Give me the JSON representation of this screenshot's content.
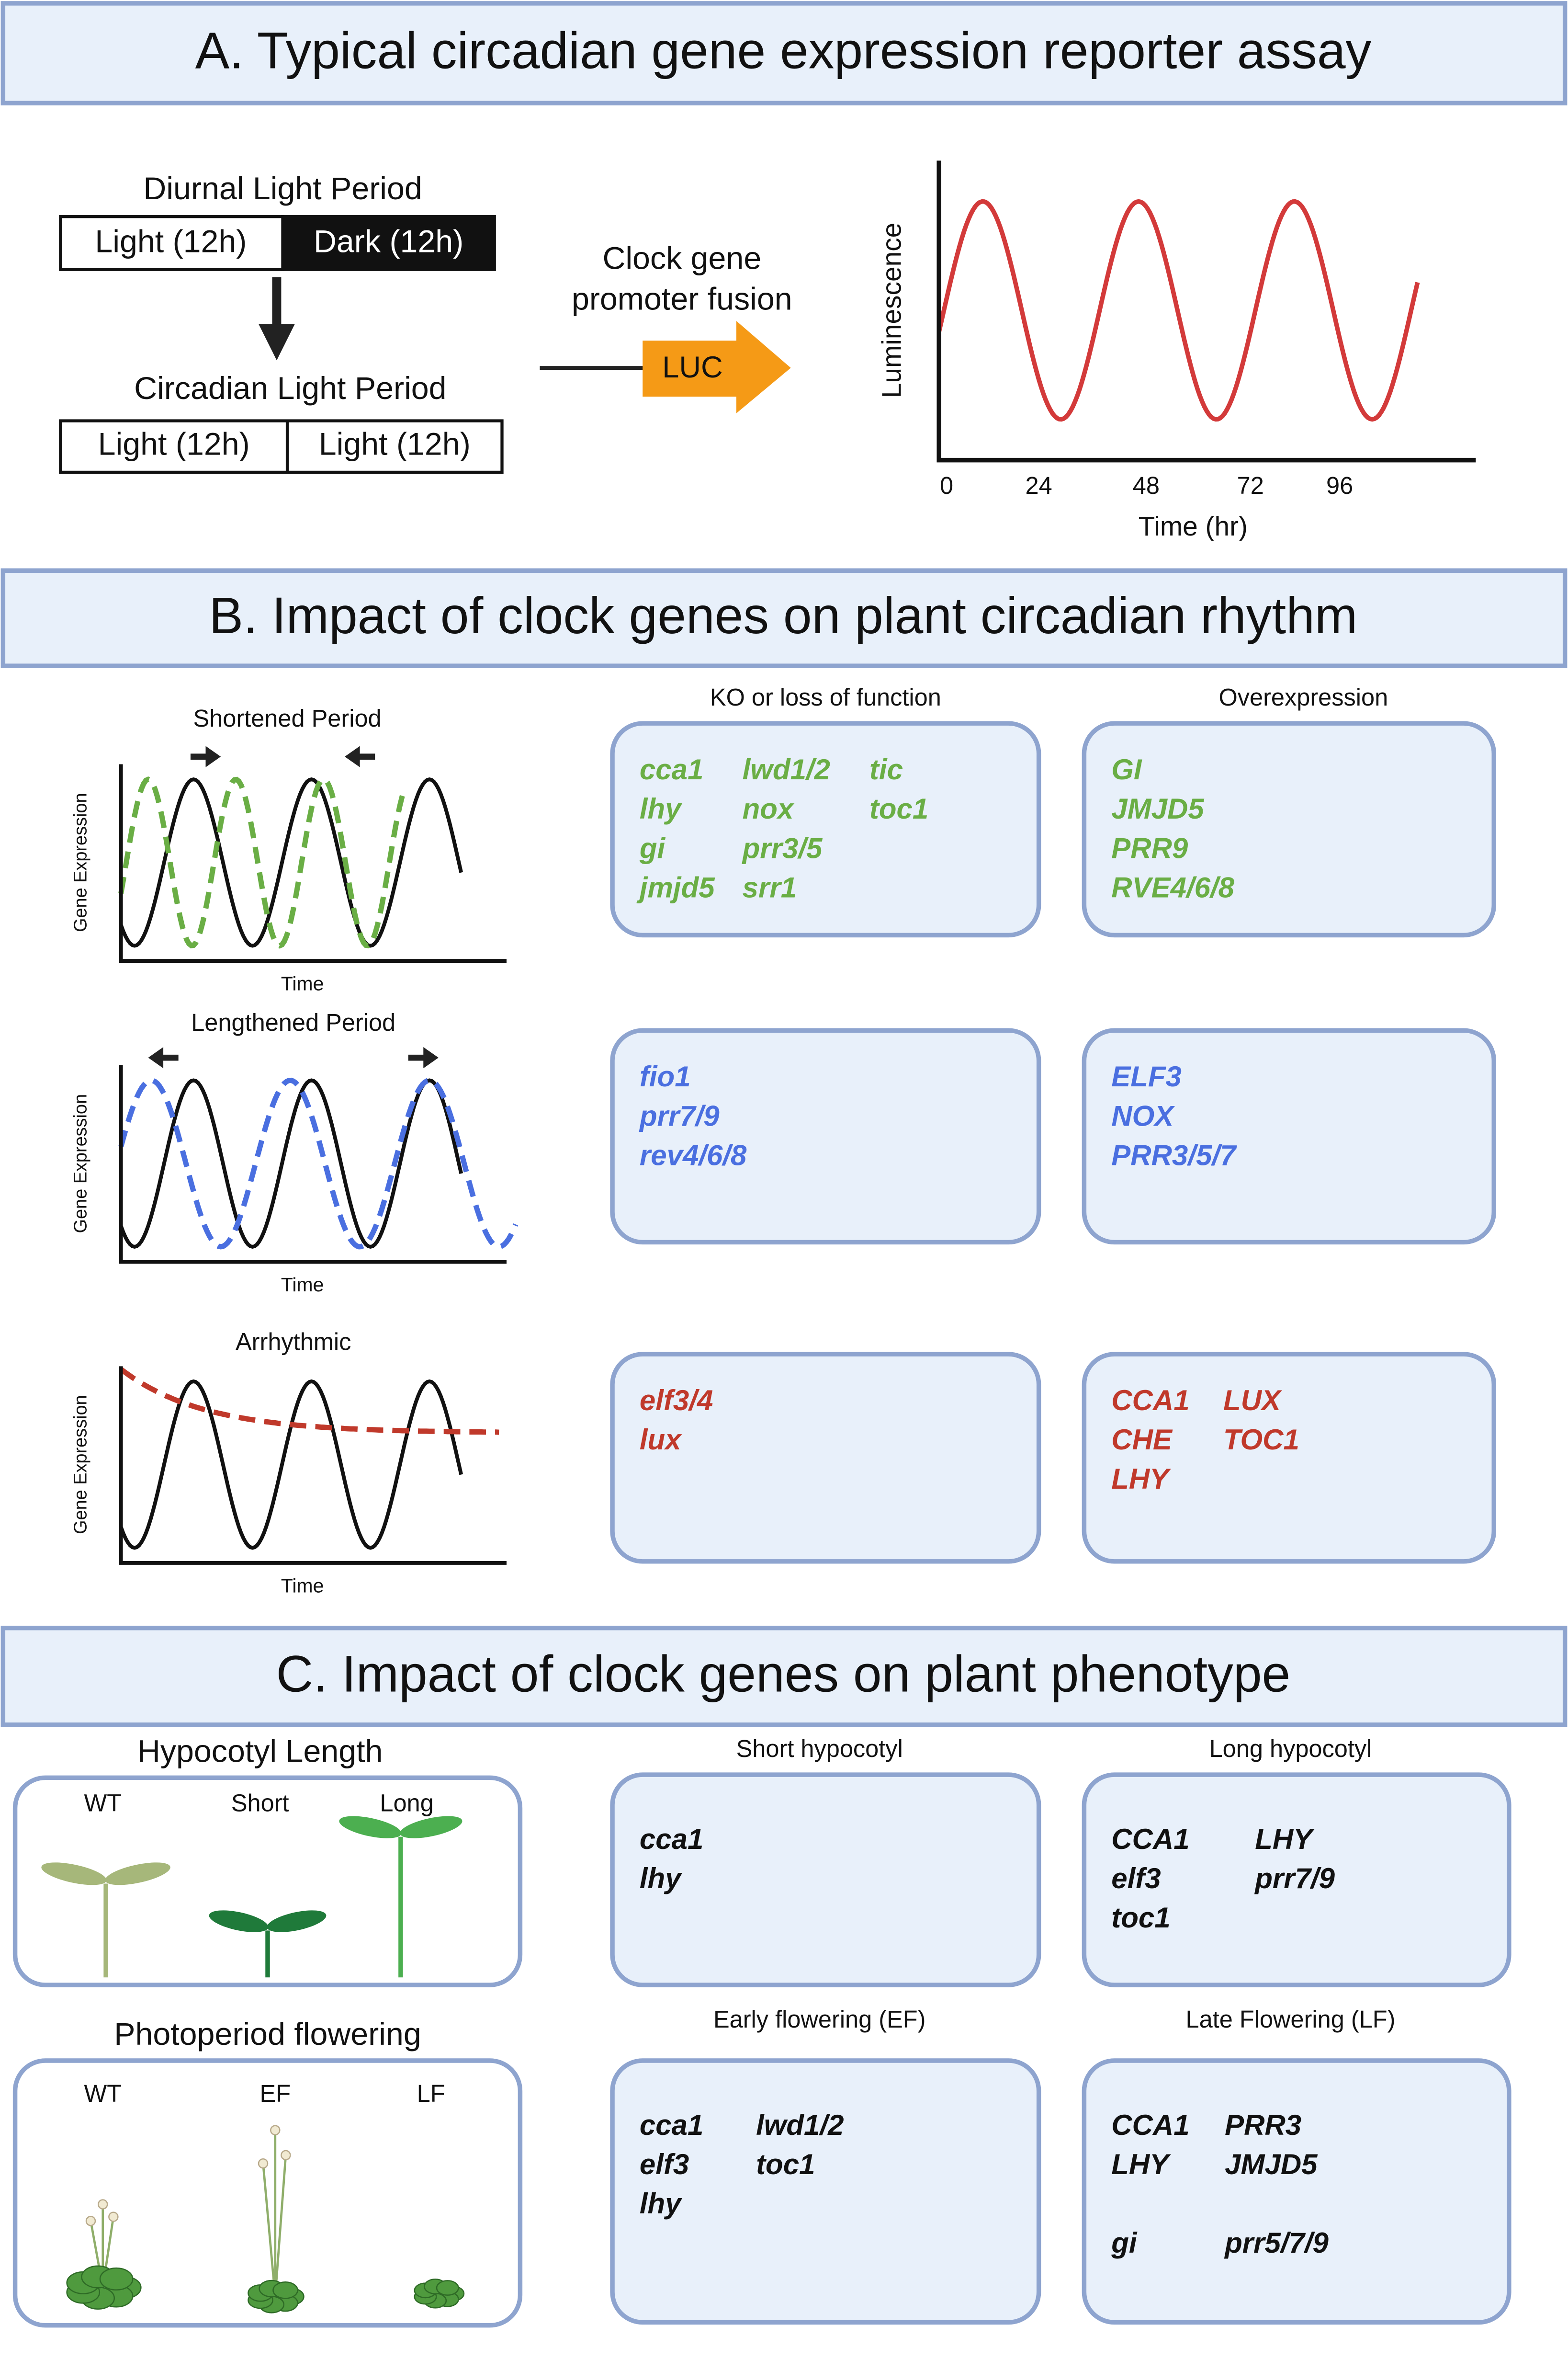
{
  "panel_a": {
    "title": "A. Typical circadian gene expression reporter assay",
    "diurnal": {
      "label": "Diurnal Light Period",
      "left": "Light (12h)",
      "right": "Dark (12h)"
    },
    "circadian": {
      "label": "Circadian Light Period",
      "left": "Light (12h)",
      "right": "Light (12h)"
    },
    "fusion": {
      "label_lines": [
        "Clock gene",
        "promoter fusion"
      ],
      "reporter": "LUC"
    },
    "plot": {
      "y_label": "Luminescence",
      "x_label": "Time (hr)",
      "x_ticks": [
        0,
        24,
        48,
        72,
        96
      ]
    }
  },
  "panel_b": {
    "title": "B. Impact of clock genes on plant circadian rhythm",
    "column_headers": [
      "KO or loss of function",
      "Overexpression"
    ],
    "rows": [
      {
        "plot_title": "Shortened Period",
        "y_label": "Gene Expression",
        "x_label": "Time",
        "color": "#6aae45",
        "ko": [
          [
            "cca1",
            "lwd1/2",
            "tic"
          ],
          [
            "lhy",
            "nox",
            "toc1"
          ],
          [
            "gi",
            "prr3/5"
          ],
          [
            "jmjd5",
            "srr1"
          ]
        ],
        "overexpression": [
          [
            "GI"
          ],
          [
            "JMJD5"
          ],
          [
            "PRR9"
          ],
          [
            "RVE4/6/8"
          ]
        ]
      },
      {
        "plot_title": "Lengthened Period",
        "y_label": "Gene Expression",
        "x_label": "Time",
        "color": "#4a6fe0",
        "ko": [
          [
            "fio1"
          ],
          [
            "prr7/9"
          ],
          [
            "rev4/6/8"
          ]
        ],
        "overexpression": [
          [
            "ELF3"
          ],
          [
            "NOX"
          ],
          [
            "PRR3/5/7"
          ]
        ]
      },
      {
        "plot_title": "Arrhythmic",
        "y_label": "Gene Expression",
        "x_label": "Time",
        "color": "#c0392b",
        "ko": [
          [
            "elf3/4"
          ],
          [
            "lux"
          ]
        ],
        "overexpression": [
          [
            "CCA1",
            "LUX"
          ],
          [
            "CHE",
            "TOC1"
          ],
          [
            "LHY"
          ]
        ]
      }
    ]
  },
  "panel_c": {
    "title": "C. Impact of clock genes on plant phenotype",
    "hypocotyl": {
      "title": "Hypocotyl Length",
      "labels": [
        "WT",
        "Short",
        "Long"
      ]
    },
    "flowering": {
      "title": "Photoperiod flowering",
      "labels": [
        "WT",
        "EF",
        "LF"
      ]
    },
    "boxes": [
      {
        "header": "Short hypocotyl",
        "genes": [
          [
            "cca1"
          ],
          [
            "lhy"
          ]
        ]
      },
      {
        "header": "Long hypocotyl",
        "genes": [
          [
            "CCA1",
            "LHY"
          ],
          [
            "elf3",
            "prr7/9"
          ],
          [
            "toc1"
          ]
        ]
      },
      {
        "header": "Early flowering (EF)",
        "genes": [
          [
            "cca1",
            "lwd1/2"
          ],
          [
            "elf3",
            "toc1"
          ],
          [
            "lhy"
          ]
        ]
      },
      {
        "header": "Late Flowering (LF)",
        "genes": [
          [
            "CCA1",
            "PRR3"
          ],
          [
            "LHY",
            "JMJD5"
          ],
          [],
          [
            "gi",
            "prr5/7/9"
          ]
        ]
      }
    ]
  }
}
